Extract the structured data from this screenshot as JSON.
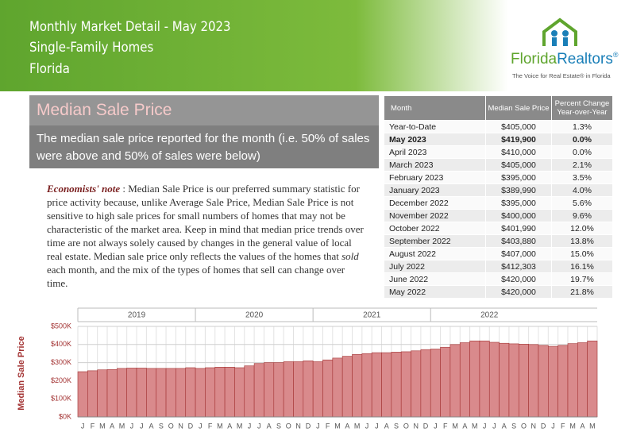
{
  "header": {
    "title": "Monthly Market Detail - May 2023",
    "subtitle": "Single-Family Homes",
    "region": "Florida"
  },
  "logo": {
    "name_a": "Florida",
    "name_b": "Realtors",
    "mark": "®",
    "tagline": "The Voice for Real Estate® in Florida"
  },
  "section": {
    "title": "Median Sale Price",
    "description": "The median sale price reported for the month (i.e. 50% of sales were above and 50% of sales were below)"
  },
  "note": {
    "label": "Economists' note",
    "text_before": " :  Median Sale Price is our preferred summary statistic for price activity because, unlike Average Sale Price, Median Sale Price is not sensitive to high sale prices for small numbers of homes that may not be characteristic of the market area.  Keep in mind that median price trends over time are not always solely caused by changes in the general value of local real estate.  Median sale price only reflects the values of the homes that ",
    "emphasis": "sold",
    "text_after": "  each month, and the mix of the types of homes that sell can change over time."
  },
  "table": {
    "header": [
      "Month",
      "Median Sale Price",
      "Percent Change Year-over-Year"
    ],
    "rows": [
      [
        "Year-to-Date",
        "$405,000",
        "1.3%"
      ],
      [
        "May 2023",
        "$419,900",
        "0.0%"
      ],
      [
        "April 2023",
        "$410,000",
        "0.0%"
      ],
      [
        "March 2023",
        "$405,000",
        "2.1%"
      ],
      [
        "February 2023",
        "$395,000",
        "3.5%"
      ],
      [
        "January 2023",
        "$389,990",
        "4.0%"
      ],
      [
        "December 2022",
        "$395,000",
        "5.6%"
      ],
      [
        "November 2022",
        "$400,000",
        "9.6%"
      ],
      [
        "October 2022",
        "$401,990",
        "12.0%"
      ],
      [
        "September 2022",
        "$403,880",
        "13.8%"
      ],
      [
        "August 2022",
        "$407,000",
        "15.0%"
      ],
      [
        "July 2022",
        "$412,303",
        "16.1%"
      ],
      [
        "June 2022",
        "$420,000",
        "19.7%"
      ],
      [
        "May 2022",
        "$420,000",
        "21.8%"
      ]
    ]
  },
  "chart_data": {
    "type": "bar",
    "y_label": "Median Sale Price",
    "color": "#d98a8c",
    "years": [
      "2019",
      "2020",
      "2021",
      "2022"
    ],
    "categories": [
      "J",
      "F",
      "M",
      "A",
      "M",
      "J",
      "J",
      "A",
      "S",
      "O",
      "N",
      "D",
      "J",
      "F",
      "M",
      "A",
      "M",
      "J",
      "J",
      "A",
      "S",
      "O",
      "N",
      "D",
      "J",
      "F",
      "M",
      "A",
      "M",
      "J",
      "J",
      "A",
      "S",
      "O",
      "N",
      "D",
      "J",
      "F",
      "M",
      "A",
      "M",
      "J",
      "J",
      "A",
      "S",
      "O",
      "N",
      "D",
      "J",
      "F",
      "M",
      "A",
      "M"
    ],
    "values": [
      250000,
      255000,
      260000,
      262000,
      268000,
      270000,
      270000,
      268000,
      268000,
      268000,
      268000,
      272000,
      268000,
      272000,
      275000,
      275000,
      272000,
      282000,
      295000,
      300000,
      300000,
      305000,
      305000,
      310000,
      305000,
      315000,
      325000,
      335000,
      345000,
      350000,
      355000,
      355000,
      358000,
      360000,
      365000,
      372000,
      375000,
      385000,
      400000,
      410000,
      420000,
      420000,
      412303,
      407000,
      403880,
      401990,
      400000,
      395000,
      389990,
      395000,
      405000,
      410000,
      419900
    ],
    "ylim": [
      0,
      500000
    ],
    "yticks": [
      {
        "value": 0,
        "label": "$0K"
      },
      {
        "value": 100000,
        "label": "$100K"
      },
      {
        "value": 200000,
        "label": "$200K"
      },
      {
        "value": 300000,
        "label": "$300K"
      },
      {
        "value": 400000,
        "label": "$400K"
      },
      {
        "value": 500000,
        "label": "$500K"
      }
    ],
    "grid": true
  }
}
